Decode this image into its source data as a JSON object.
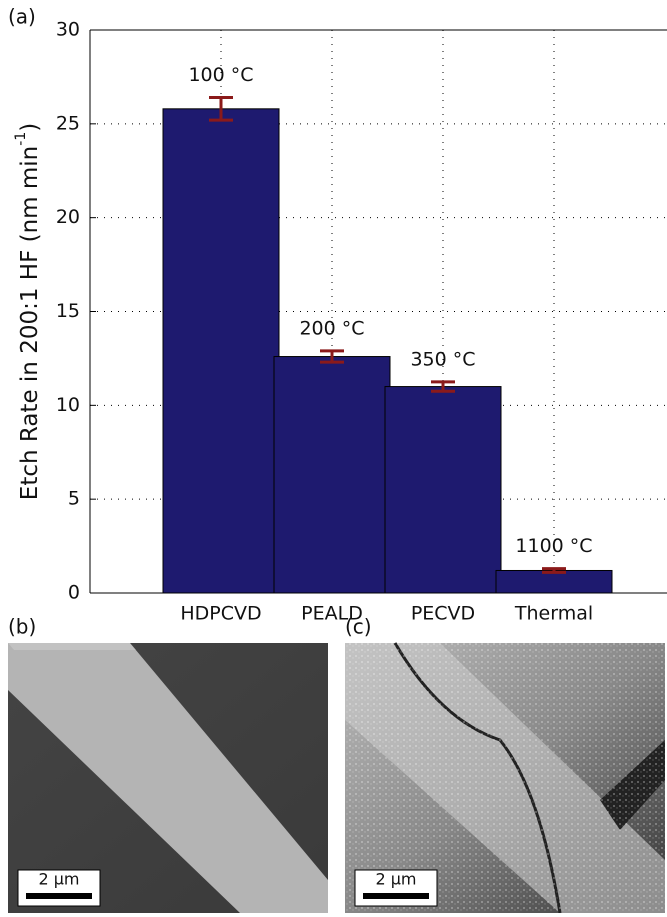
{
  "chart_data": {
    "type": "bar",
    "panel_label": "(a)",
    "ylabel": {
      "text": "Etch Rate in 200:1 HF (nm min",
      "sup": "-1",
      "end": ")"
    },
    "categories": [
      "HDPCVD",
      "PEALD",
      "PECVD",
      "Thermal"
    ],
    "values": [
      25.8,
      12.6,
      11.0,
      1.2
    ],
    "errors": [
      0.6,
      0.3,
      0.25,
      0.1
    ],
    "annotations": [
      "100 °C",
      "200 °C",
      "350 °C",
      "1100 °C"
    ],
    "color": "#1e1a6f",
    "error_color": "#8b1a1a",
    "ylim": [
      0,
      30
    ],
    "yticks": [
      0,
      5,
      10,
      15,
      20,
      25,
      30
    ],
    "grid": true
  },
  "images": [
    {
      "panel_label": "(b)",
      "scale_bar": "2 µm"
    },
    {
      "panel_label": "(c)",
      "scale_bar": "2 µm"
    }
  ]
}
